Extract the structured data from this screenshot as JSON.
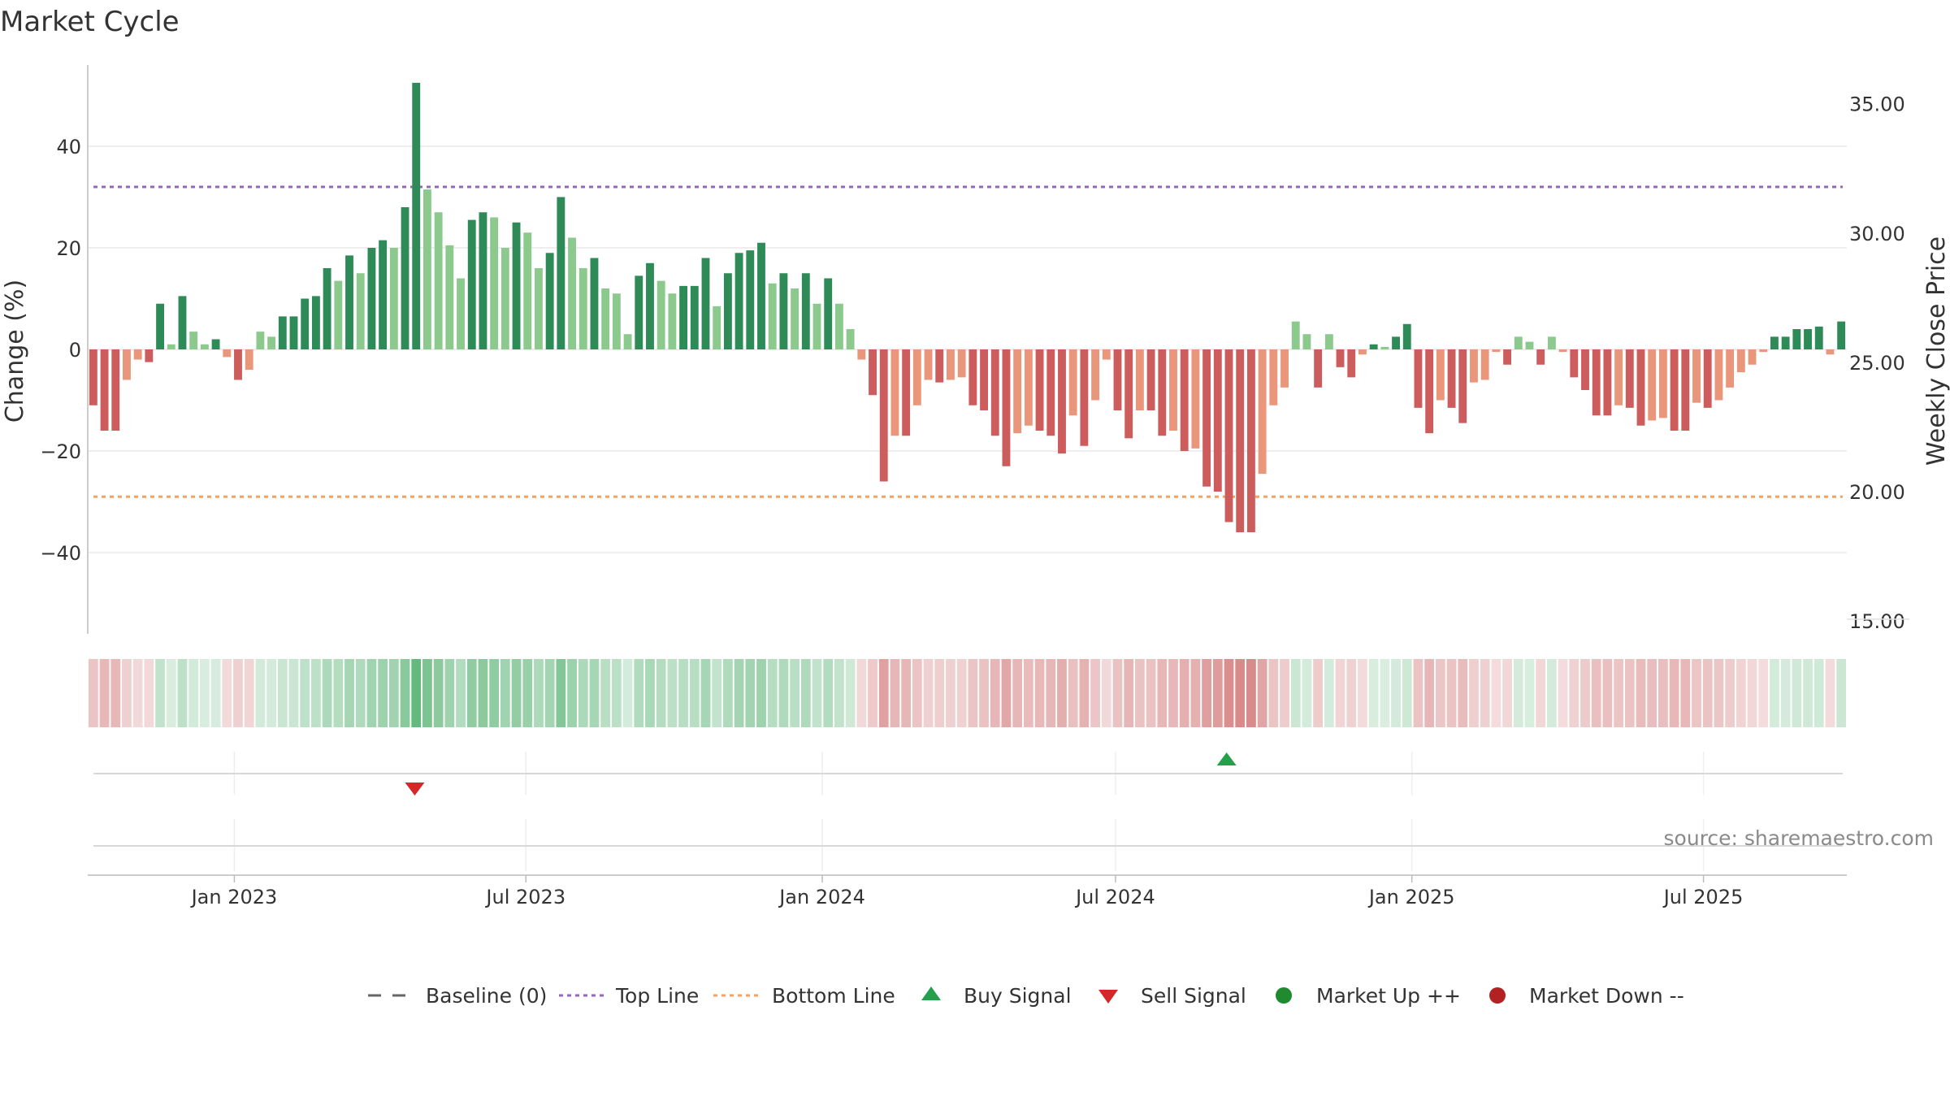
{
  "chart_data": {
    "type": "bar",
    "title": "Market Cycle",
    "ylabel": "Change (%)",
    "y2label": "Weekly Close Price",
    "ylim": [
      -56,
      56
    ],
    "y2lim": [
      14.5,
      36.5
    ],
    "yticks": [
      -40,
      -20,
      0,
      20,
      40
    ],
    "y2ticks": [
      "15.00",
      "20.00",
      "25.00",
      "30.00",
      "35.00"
    ],
    "x_start": "2022-10-02",
    "x_end": "2025-09-28",
    "xticks": [
      {
        "date": "2023-01-01",
        "label": "Jan 2023"
      },
      {
        "date": "2023-07-01",
        "label": "Jul 2023"
      },
      {
        "date": "2024-01-01",
        "label": "Jan 2024"
      },
      {
        "date": "2024-07-01",
        "label": "Jul 2024"
      },
      {
        "date": "2025-01-01",
        "label": "Jan 2025"
      },
      {
        "date": "2025-07-01",
        "label": "Jul 2025"
      }
    ],
    "top_line": 32,
    "bottom_line": -29,
    "baseline": 0,
    "grid": true,
    "legend_position": "bottom",
    "source": "source: sharemaestro.com",
    "legend": [
      {
        "label": "Baseline (0)",
        "marker": "dash",
        "color": "#666666"
      },
      {
        "label": "Top Line",
        "marker": "dotted",
        "color": "#9467bd"
      },
      {
        "label": "Bottom Line",
        "marker": "dotted",
        "color": "#f4a261"
      },
      {
        "label": "Buy Signal",
        "marker": "triangle-up",
        "color": "#22a04b"
      },
      {
        "label": "Sell Signal",
        "marker": "triangle-down",
        "color": "#d62728"
      },
      {
        "label": "Market Up ++",
        "marker": "circle",
        "color": "#1f8a2e"
      },
      {
        "label": "Market Down --",
        "marker": "circle",
        "color": "#b22222"
      }
    ],
    "signals": [
      {
        "type": "sell",
        "date": "2023-04-23"
      },
      {
        "type": "buy",
        "date": "2024-09-08"
      }
    ],
    "colors": {
      "up_strong": "#2e8b57",
      "up_weak": "#8cc98c",
      "down_strong": "#cd5c5c",
      "down_weak": "#e9967a",
      "top_line": "#9467bd",
      "bottom_line": "#f4a261"
    },
    "values": [
      -11,
      -16,
      -16,
      -6,
      -2,
      -2.5,
      9,
      1,
      10.5,
      3.5,
      1,
      2,
      -1.5,
      -6,
      -4,
      3.5,
      2.5,
      6.5,
      6.5,
      10,
      10.5,
      16,
      13.5,
      18.5,
      15,
      20,
      21.5,
      20,
      28,
      52.5,
      31.5,
      27,
      20.5,
      14,
      25.5,
      27,
      26,
      20,
      25,
      23,
      16,
      19,
      30,
      22,
      16,
      18,
      12,
      11,
      3,
      14.5,
      17,
      13.5,
      11,
      12.5,
      12.5,
      18,
      8.5,
      15,
      19,
      19.5,
      21,
      13,
      15,
      12,
      15,
      9,
      14,
      9,
      4,
      -2,
      -9,
      -26,
      -17,
      -17,
      -11,
      -6,
      -6.5,
      -6,
      -5.5,
      -11,
      -12,
      -17,
      -23,
      -16.5,
      -15,
      -16,
      -17,
      -20.5,
      -13,
      -19,
      -10,
      -2,
      -12,
      -17.5,
      -12,
      -12,
      -17,
      -16,
      -20,
      -19.5,
      -27,
      -28,
      -34,
      -36,
      -36,
      -24.5,
      -11,
      -7.5,
      5.5,
      3,
      -7.5,
      3,
      -3.5,
      -5.5,
      -1,
      1,
      0.5,
      2.5,
      5,
      -11.5,
      -16.5,
      -10,
      -11.5,
      -14.5,
      -6.5,
      -6,
      -0.5,
      -3,
      2.5,
      1.5,
      -3,
      2.5,
      -0.5,
      -5.5,
      -8,
      -13,
      -13,
      -11,
      -11.5,
      -15,
      -14,
      -13.5,
      -16,
      -16,
      -10.5,
      -11.5,
      -10,
      -7.5,
      -4.5,
      -3,
      -0.5,
      2.5,
      2.5,
      4,
      4,
      4.5,
      -1,
      5.5
    ]
  },
  "legend_text": {
    "baseline": "Baseline (0)",
    "top": "Top Line",
    "bottom": "Bottom Line",
    "buy": "Buy Signal",
    "sell": "Sell Signal",
    "up": "Market Up ++",
    "down": "Market Down --"
  }
}
